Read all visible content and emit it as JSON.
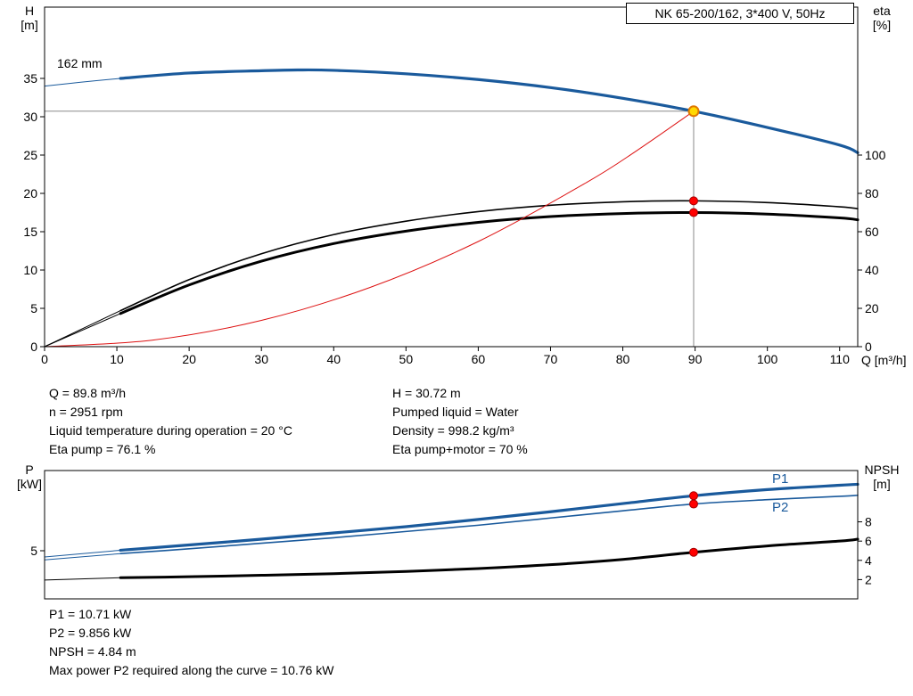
{
  "title_box": "NK 65-200/162, 3*400 V, 50Hz",
  "labels": {
    "top_y_left_1": "H",
    "top_y_left_2": "[m]",
    "top_y_right_1": "eta",
    "top_y_right_2": "[%]",
    "top_x": "Q [m³/h]",
    "impeller": "162 mm",
    "bottom_y_left_1": "P",
    "bottom_y_left_2": "[kW]",
    "bottom_y_right_1": "NPSH",
    "bottom_y_right_2": "[m]",
    "p1": "P1",
    "p2": "P2"
  },
  "info_top_left": [
    "Q = 89.8 m³/h",
    "n = 2951 rpm",
    "Liquid temperature during operation = 20 °C",
    "Eta pump = 76.1 %"
  ],
  "info_top_right": [
    "H = 30.72 m",
    "Pumped liquid = Water",
    "Density = 998.2 kg/m³",
    "Eta pump+motor = 70 %"
  ],
  "info_bottom": [
    "P1 = 10.71 kW",
    "P2 = 9.856 kW",
    "NPSH = 4.84 m",
    "Max power P2 required along the curve = 10.76 kW"
  ],
  "colors": {
    "curve_blue": "#1a5a9c",
    "curve_black": "#000000",
    "curve_red": "#dd1111",
    "dot_red": "#ff0000",
    "dot_edge": "#a00000",
    "duty_fill": "#ffd800",
    "duty_stroke": "#e07800",
    "crosshair": "#8a8a8a"
  },
  "chart_data": [
    {
      "type": "line",
      "title": "NK 65-200/162, 3*400 V, 50Hz",
      "xlabel": "Q [m³/h]",
      "ylabel_left": "H [m]",
      "ylabel_right": "eta [%]",
      "xlim": [
        0,
        112.5
      ],
      "ylim_left": [
        0,
        44.3
      ],
      "ylim_right": [
        0,
        177.2
      ],
      "x_ticks": [
        0,
        10,
        20,
        30,
        40,
        50,
        60,
        70,
        80,
        90,
        100,
        110
      ],
      "y_ticks_left": [
        0,
        5,
        10,
        15,
        20,
        25,
        30,
        35
      ],
      "y_ticks_right": [
        0,
        20,
        40,
        60,
        80,
        100
      ],
      "grid": false,
      "legend": "none",
      "impeller_label": "162 mm",
      "duty_point": {
        "q_m3h": 89.8,
        "h_m": 30.72
      },
      "crosshair": {
        "x": 89.8,
        "y": 30.72
      },
      "series": [
        {
          "name": "head-curve-lead",
          "axis": "left",
          "color": "#1a5a9c",
          "width": 1,
          "x": [
            0,
            5,
            10.5
          ],
          "y": [
            34.0,
            34.5,
            35.0
          ]
        },
        {
          "name": "head-curve-162mm",
          "axis": "left",
          "color": "#1a5a9c",
          "width": 3.2,
          "x": [
            10.5,
            20,
            30,
            35,
            40,
            50,
            60,
            70,
            80,
            89.8,
            100,
            110,
            112.5
          ],
          "y": [
            35.0,
            35.7,
            36.0,
            36.1,
            36.05,
            35.6,
            34.85,
            33.8,
            32.4,
            30.72,
            28.6,
            26.3,
            25.3
          ]
        },
        {
          "name": "eta-pump-lead",
          "axis": "right",
          "color": "#000000",
          "width": 1,
          "x": [
            0,
            10.5
          ],
          "y": [
            0,
            18.8
          ]
        },
        {
          "name": "eta-pump-curve",
          "axis": "right",
          "color": "#000000",
          "width": 1.6,
          "x": [
            10.5,
            20,
            30,
            40,
            50,
            60,
            70,
            80,
            89.8,
            100,
            110,
            112.5
          ],
          "y": [
            18.8,
            35.0,
            48.5,
            58.5,
            65.5,
            70.5,
            73.8,
            75.6,
            76.1,
            75.2,
            73.0,
            72.0
          ]
        },
        {
          "name": "eta-pump-motor-lead",
          "axis": "right",
          "color": "#000000",
          "width": 1,
          "x": [
            0,
            10.5
          ],
          "y": [
            0,
            17.3
          ]
        },
        {
          "name": "eta-pump-motor-curve",
          "axis": "right",
          "color": "#000000",
          "width": 3,
          "x": [
            10.5,
            20,
            30,
            40,
            50,
            60,
            70,
            80,
            89.8,
            100,
            110,
            112.5
          ],
          "y": [
            17.3,
            32.2,
            44.6,
            53.8,
            60.3,
            64.9,
            67.9,
            69.5,
            70.0,
            69.2,
            67.2,
            66.2
          ]
        },
        {
          "name": "system-curve",
          "axis": "left",
          "color": "#dd1111",
          "width": 1,
          "x": [
            0,
            15,
            30,
            45,
            60,
            75,
            82,
            89.8
          ],
          "y": [
            0,
            0.86,
            3.43,
            7.72,
            13.72,
            21.43,
            25.62,
            30.72
          ]
        }
      ],
      "markers": [
        {
          "name": "eta-pump-point",
          "axis": "right",
          "x": 89.8,
          "y": 76.1,
          "type": "dot"
        },
        {
          "name": "eta-pump-motor-point",
          "axis": "right",
          "x": 89.8,
          "y": 70.0,
          "type": "dot"
        },
        {
          "name": "duty-point",
          "axis": "left",
          "x": 89.8,
          "y": 30.72,
          "type": "duty"
        }
      ]
    },
    {
      "type": "line",
      "title": "",
      "xlabel": "",
      "ylabel_left": "P [kW]",
      "ylabel_right": "NPSH [m]",
      "xlim": [
        0,
        112.5
      ],
      "ylim_left": [
        0,
        13.33
      ],
      "ylim_right": [
        0,
        13.33
      ],
      "x_ticks": [],
      "y_ticks_left": [
        5
      ],
      "y_ticks_right": [
        2,
        4,
        6,
        8
      ],
      "grid": false,
      "legend": "inline-labels-P1-P2",
      "series": [
        {
          "name": "p1-curve-lead",
          "axis": "left",
          "color": "#1a5a9c",
          "width": 1,
          "x": [
            0,
            10.5
          ],
          "y": [
            4.35,
            5.05
          ]
        },
        {
          "name": "p1-curve",
          "axis": "left",
          "color": "#1a5a9c",
          "width": 3.2,
          "x": [
            10.5,
            20,
            30,
            40,
            50,
            60,
            70,
            80,
            89.8,
            100,
            110,
            112.5
          ],
          "y": [
            5.05,
            5.6,
            6.2,
            6.85,
            7.5,
            8.25,
            9.05,
            9.9,
            10.71,
            11.35,
            11.8,
            11.9
          ]
        },
        {
          "name": "p2-curve-lead",
          "axis": "left",
          "color": "#1a5a9c",
          "width": 1,
          "x": [
            0,
            10.5
          ],
          "y": [
            4.05,
            4.7
          ]
        },
        {
          "name": "p2-curve",
          "axis": "left",
          "color": "#1a5a9c",
          "width": 1.6,
          "x": [
            10.5,
            20,
            30,
            40,
            50,
            60,
            70,
            80,
            89.8,
            100,
            110,
            112.5
          ],
          "y": [
            4.7,
            5.2,
            5.78,
            6.35,
            7.0,
            7.65,
            8.4,
            9.15,
            9.856,
            10.3,
            10.65,
            10.76
          ]
        },
        {
          "name": "npsh-curve-lead",
          "axis": "right",
          "color": "#000000",
          "width": 1,
          "x": [
            0,
            10.5
          ],
          "y": [
            1.95,
            2.2
          ]
        },
        {
          "name": "npsh-curve",
          "axis": "right",
          "color": "#000000",
          "width": 3,
          "x": [
            10.5,
            20,
            30,
            40,
            50,
            60,
            70,
            80,
            89.8,
            100,
            110,
            112.5
          ],
          "y": [
            2.2,
            2.3,
            2.45,
            2.62,
            2.85,
            3.15,
            3.55,
            4.1,
            4.84,
            5.5,
            6.0,
            6.2
          ]
        }
      ],
      "markers": [
        {
          "name": "p1-point",
          "axis": "left",
          "x": 89.8,
          "y": 10.71,
          "type": "dot"
        },
        {
          "name": "p2-point",
          "axis": "left",
          "x": 89.8,
          "y": 9.856,
          "type": "dot"
        },
        {
          "name": "npsh-point",
          "axis": "right",
          "x": 89.8,
          "y": 4.84,
          "type": "dot"
        }
      ]
    }
  ]
}
